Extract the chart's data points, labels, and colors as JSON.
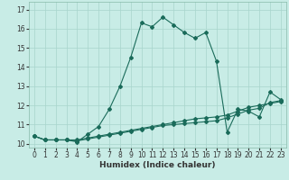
{
  "title": "",
  "xlabel": "Humidex (Indice chaleur)",
  "background_color": "#c8ece6",
  "grid_color": "#a8d4cc",
  "line_color": "#1a6b5a",
  "xlim": [
    -0.5,
    23.5
  ],
  "ylim": [
    9.8,
    17.4
  ],
  "yticks": [
    10,
    11,
    12,
    13,
    14,
    15,
    16,
    17
  ],
  "xticks": [
    0,
    1,
    2,
    3,
    4,
    5,
    6,
    7,
    8,
    9,
    10,
    11,
    12,
    13,
    14,
    15,
    16,
    17,
    18,
    19,
    20,
    21,
    22,
    23
  ],
  "series1_x": [
    0,
    1,
    2,
    3,
    4,
    5,
    6,
    7,
    8,
    9,
    10,
    11,
    12,
    13,
    14,
    15,
    16,
    17,
    18,
    19,
    20,
    21,
    22,
    23
  ],
  "series1_y": [
    10.4,
    10.2,
    10.2,
    10.2,
    10.1,
    10.5,
    10.9,
    11.8,
    13.0,
    14.5,
    16.3,
    16.1,
    16.6,
    16.2,
    15.8,
    15.5,
    15.8,
    14.3,
    10.6,
    11.8,
    11.7,
    11.4,
    12.7,
    12.3
  ],
  "series2_x": [
    0,
    1,
    2,
    3,
    4,
    5,
    6,
    7,
    8,
    9,
    10,
    11,
    12,
    13,
    14,
    15,
    16,
    17,
    18,
    19,
    20,
    21,
    22,
    23
  ],
  "series2_y": [
    10.4,
    10.2,
    10.2,
    10.2,
    10.2,
    10.3,
    10.4,
    10.5,
    10.6,
    10.7,
    10.8,
    10.9,
    11.0,
    11.1,
    11.2,
    11.3,
    11.35,
    11.4,
    11.5,
    11.7,
    11.9,
    12.0,
    12.1,
    12.2
  ],
  "series3_x": [
    0,
    1,
    2,
    3,
    4,
    5,
    6,
    7,
    8,
    9,
    10,
    11,
    12,
    13,
    14,
    15,
    16,
    17,
    18,
    19,
    20,
    21,
    22,
    23
  ],
  "series3_y": [
    10.4,
    10.2,
    10.2,
    10.2,
    10.15,
    10.25,
    10.35,
    10.45,
    10.55,
    10.65,
    10.75,
    10.85,
    10.95,
    11.0,
    11.05,
    11.1,
    11.15,
    11.2,
    11.35,
    11.55,
    11.75,
    11.85,
    12.15,
    12.25
  ],
  "marker_size": 2.0,
  "line_width": 0.8,
  "tick_fontsize": 5.5,
  "xlabel_fontsize": 6.5
}
